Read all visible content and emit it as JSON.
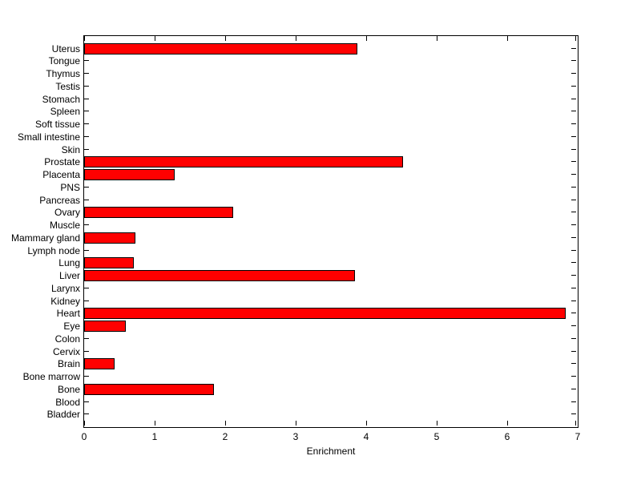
{
  "figure": {
    "background_color": "#ffffff",
    "axis_color": "#000000",
    "text_color": "#000000",
    "bar_color": "#ff0000",
    "bar_edge_color": "#000000"
  },
  "chart_data": {
    "type": "bar",
    "orientation": "horizontal",
    "title": "",
    "xlabel": "Enrichment",
    "ylabel": "",
    "xlim": [
      0,
      7
    ],
    "x_ticks": [
      "0",
      "1",
      "2",
      "3",
      "4",
      "5",
      "6",
      "7"
    ],
    "grid": false,
    "legend": false,
    "row_order": "top_to_bottom",
    "categories": [
      "Uterus",
      "Tongue",
      "Thymus",
      "Testis",
      "Stomach",
      "Spleen",
      "Soft tissue",
      "Small intestine",
      "Skin",
      "Prostate",
      "Placenta",
      "PNS",
      "Pancreas",
      "Ovary",
      "Muscle",
      "Mammary gland",
      "Lymph node",
      "Lung",
      "Liver",
      "Larynx",
      "Kidney",
      "Heart",
      "Eye",
      "Colon",
      "Cervix",
      "Brain",
      "Bone marrow",
      "Bone",
      "Blood",
      "Bladder"
    ],
    "values": [
      3.87,
      0,
      0,
      0,
      0,
      0,
      0,
      0,
      0,
      4.52,
      1.28,
      0,
      0,
      2.11,
      0,
      0.73,
      0,
      0.7,
      3.84,
      0,
      0,
      6.83,
      0.59,
      0,
      0,
      0.43,
      0,
      1.84,
      0,
      0
    ]
  }
}
